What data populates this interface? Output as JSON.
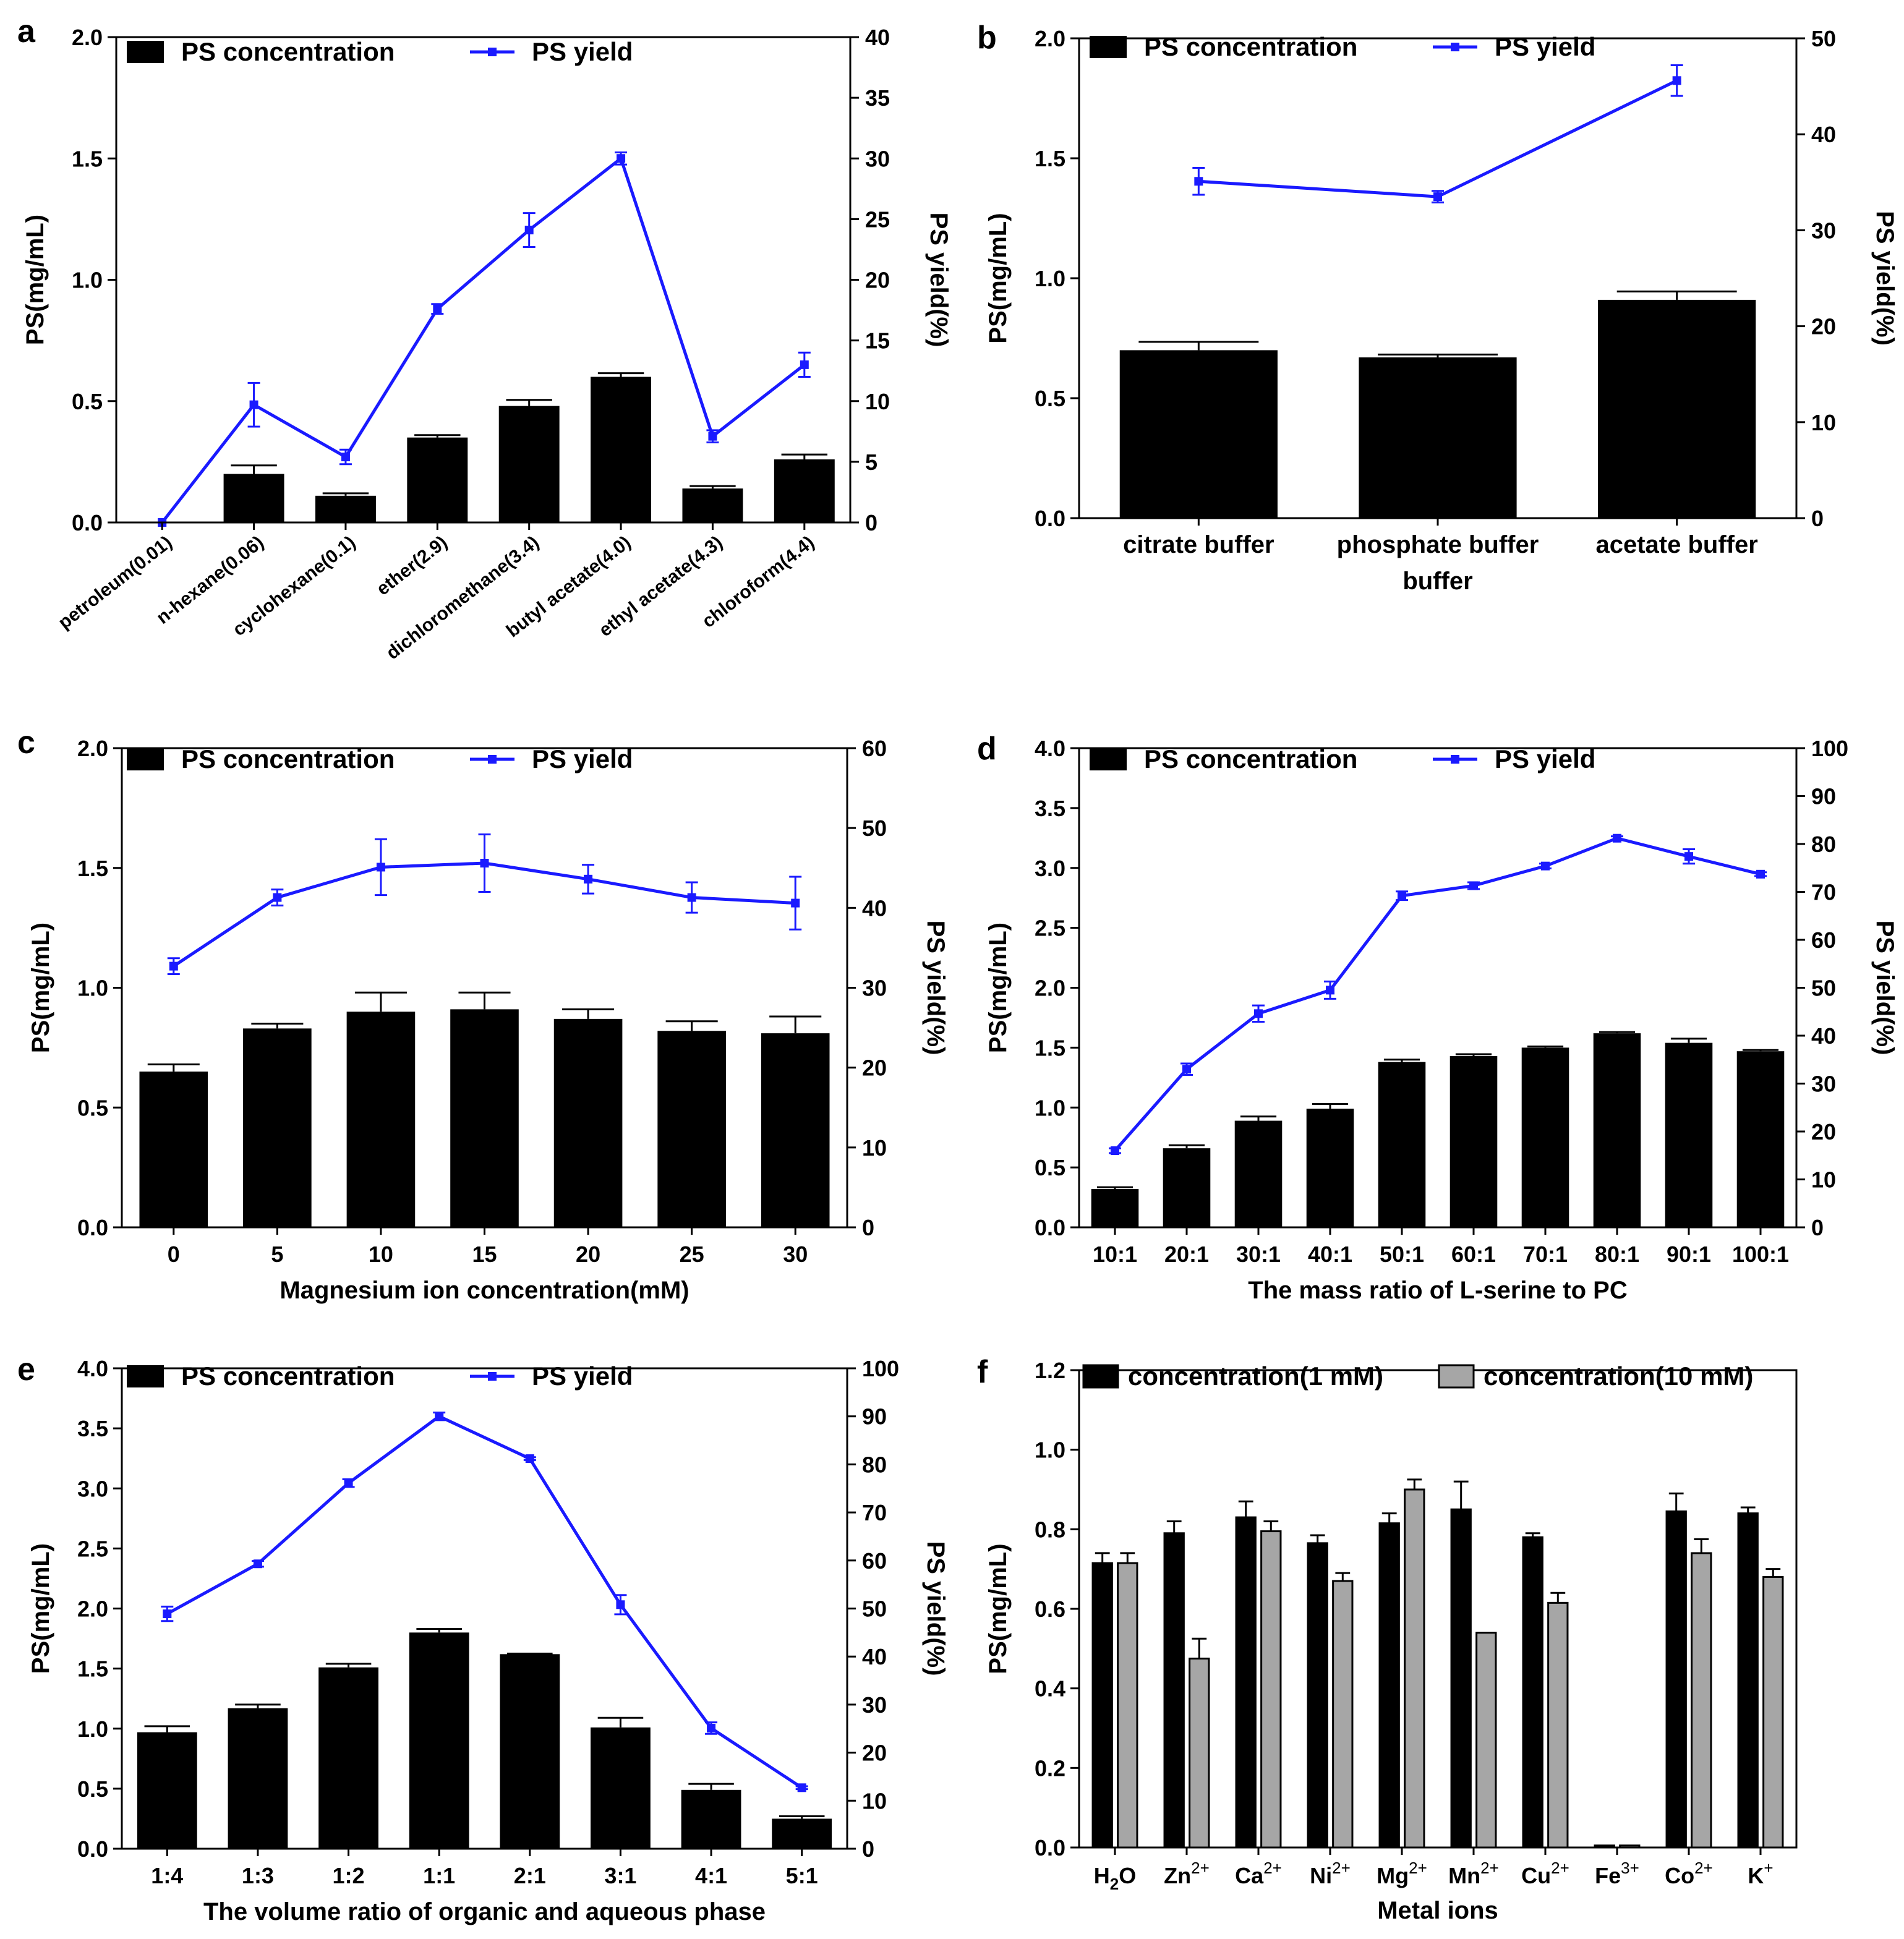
{
  "chart_data": [
    {
      "id": "a",
      "panel_label": "a",
      "type": "bar+line",
      "xlabel": "",
      "ylabel": "PS(mg/mL)",
      "y2label": "PS yield(%)",
      "ylim": [
        0,
        2.0
      ],
      "y_ticks": [
        "0.0",
        "0.5",
        "1.0",
        "1.5",
        "2.0"
      ],
      "y2lim": [
        0,
        40
      ],
      "y2_ticks": [
        "0",
        "5",
        "10",
        "15",
        "20",
        "25",
        "30",
        "35",
        "40"
      ],
      "categories": [
        "petroleum(0.01)",
        "n-hexane(0.06)",
        "cyclohexane(0.1)",
        "ether(2.9)",
        "dichloromethane(3.4)",
        "butyl acetate(4.0)",
        "ethyl acetate(4.3)",
        "chloroform(4.4)"
      ],
      "rotate_labels": true,
      "legend": [
        "PS concentration",
        "PS yield"
      ],
      "bar_series": [
        {
          "name": "PS concentration",
          "color": "#000000",
          "values": [
            0,
            0.2,
            0.11,
            0.35,
            0.48,
            0.6,
            0.14,
            0.26
          ],
          "errors": [
            0,
            0.035,
            0.01,
            0.01,
            0.025,
            0.015,
            0.01,
            0.02
          ]
        }
      ],
      "line_series": {
        "name": "PS yield",
        "color": "#1a1aff",
        "values": [
          0,
          9.7,
          5.4,
          17.6,
          24.1,
          30.0,
          7.1,
          13.0
        ],
        "errors": [
          0,
          1.8,
          0.6,
          0.4,
          1.4,
          0.5,
          0.5,
          1.0
        ]
      }
    },
    {
      "id": "b",
      "panel_label": "b",
      "type": "bar+line",
      "xlabel": "buffer",
      "ylabel": "PS(mg/mL)",
      "y2label": "PS yield(%)",
      "ylim": [
        0,
        2.0
      ],
      "y_ticks": [
        "0.0",
        "0.5",
        "1.0",
        "1.5",
        "2.0"
      ],
      "y2lim": [
        0,
        50
      ],
      "y2_ticks": [
        "0",
        "10",
        "20",
        "30",
        "40",
        "50"
      ],
      "categories": [
        "citrate buffer",
        "phosphate buffer",
        "acetate buffer"
      ],
      "rotate_labels": false,
      "legend": [
        "PS concentration",
        "PS yield"
      ],
      "bar_series": [
        {
          "name": "PS concentration",
          "color": "#000000",
          "values": [
            0.7,
            0.67,
            0.91
          ],
          "errors": [
            0.035,
            0.012,
            0.035
          ]
        }
      ],
      "line_series": {
        "name": "PS yield",
        "color": "#1a1aff",
        "values": [
          35.1,
          33.5,
          45.6
        ],
        "errors": [
          1.4,
          0.6,
          1.6
        ]
      }
    },
    {
      "id": "c",
      "panel_label": "c",
      "type": "bar+line",
      "xlabel": "Magnesium ion concentration(mM)",
      "ylabel": "PS(mg/mL)",
      "y2label": "PS yield(%)",
      "ylim": [
        0,
        2.0
      ],
      "y_ticks": [
        "0.0",
        "0.5",
        "1.0",
        "1.5",
        "2.0"
      ],
      "y2lim": [
        0,
        60
      ],
      "y2_ticks": [
        "0",
        "10",
        "20",
        "30",
        "40",
        "50",
        "60"
      ],
      "categories": [
        "0",
        "5",
        "10",
        "15",
        "20",
        "25",
        "30"
      ],
      "rotate_labels": false,
      "legend": [
        "PS concentration",
        "PS yield"
      ],
      "bar_series": [
        {
          "name": "PS concentration",
          "color": "#000000",
          "values": [
            0.65,
            0.83,
            0.9,
            0.91,
            0.87,
            0.82,
            0.81
          ],
          "errors": [
            0.03,
            0.02,
            0.08,
            0.07,
            0.04,
            0.04,
            0.07
          ]
        }
      ],
      "line_series": {
        "name": "PS yield",
        "color": "#1a1aff",
        "values": [
          32.7,
          41.3,
          45.1,
          45.6,
          43.6,
          41.3,
          40.6
        ],
        "errors": [
          1.0,
          1.0,
          3.5,
          3.6,
          1.8,
          1.9,
          3.3
        ]
      }
    },
    {
      "id": "d",
      "panel_label": "d",
      "type": "bar+line",
      "xlabel": "The mass ratio of L-serine to PC",
      "ylabel": "PS(mg/mL)",
      "y2label": "PS yield(%)",
      "ylim": [
        0,
        4.0
      ],
      "y_ticks": [
        "0.0",
        "0.5",
        "1.0",
        "1.5",
        "2.0",
        "2.5",
        "3.0",
        "3.5",
        "4.0"
      ],
      "y2lim": [
        0,
        100
      ],
      "y2_ticks": [
        "0",
        "10",
        "20",
        "30",
        "40",
        "50",
        "60",
        "70",
        "80",
        "90",
        "100"
      ],
      "categories": [
        "10:1",
        "20:1",
        "30:1",
        "40:1",
        "50:1",
        "60:1",
        "70:1",
        "80:1",
        "90:1",
        "100:1"
      ],
      "rotate_labels": false,
      "legend": [
        "PS concentration",
        "PS yield"
      ],
      "bar_series": [
        {
          "name": "PS concentration",
          "color": "#000000",
          "values": [
            0.32,
            0.66,
            0.89,
            0.99,
            1.38,
            1.43,
            1.5,
            1.62,
            1.54,
            1.47
          ],
          "errors": [
            0.015,
            0.025,
            0.035,
            0.04,
            0.02,
            0.015,
            0.01,
            0.01,
            0.035,
            0.01
          ]
        }
      ],
      "line_series": {
        "name": "PS yield",
        "color": "#1a1aff",
        "values": [
          16,
          33,
          44.6,
          49.5,
          69.2,
          71.3,
          75.4,
          81.2,
          77.4,
          73.7
        ],
        "errors": [
          0.5,
          1.2,
          1.7,
          1.8,
          0.9,
          0.7,
          0.5,
          0.4,
          1.5,
          0.4
        ]
      }
    },
    {
      "id": "e",
      "panel_label": "e",
      "type": "bar+line",
      "xlabel": "The volume ratio of organic and aqueous phase",
      "ylabel": "PS(mg/mL)",
      "y2label": "PS yield(%)",
      "ylim": [
        0,
        4.0
      ],
      "y_ticks": [
        "0.0",
        "0.5",
        "1.0",
        "1.5",
        "2.0",
        "2.5",
        "3.0",
        "3.5",
        "4.0"
      ],
      "y2lim": [
        0,
        100
      ],
      "y2_ticks": [
        "0",
        "10",
        "20",
        "30",
        "40",
        "50",
        "60",
        "70",
        "80",
        "90",
        "100"
      ],
      "categories": [
        "1:4",
        "1:3",
        "1:2",
        "1:1",
        "2:1",
        "3:1",
        "4:1",
        "5:1"
      ],
      "rotate_labels": false,
      "legend": [
        "PS concentration",
        "PS yield"
      ],
      "bar_series": [
        {
          "name": "PS concentration",
          "color": "#000000",
          "values": [
            0.97,
            1.17,
            1.51,
            1.8,
            1.62,
            1.01,
            0.49,
            0.25
          ],
          "errors": [
            0.05,
            0.03,
            0.03,
            0.03,
            0.005,
            0.08,
            0.05,
            0.02
          ]
        }
      ],
      "line_series": {
        "name": "PS yield",
        "color": "#1a1aff",
        "values": [
          48.9,
          59.3,
          76.1,
          90.0,
          81.2,
          50.8,
          25.1,
          12.7
        ],
        "errors": [
          1.5,
          0.6,
          0.8,
          0.8,
          0.3,
          2.0,
          1.2,
          0.3
        ]
      }
    },
    {
      "id": "f",
      "panel_label": "f",
      "type": "grouped_bar",
      "xlabel": "Metal ions",
      "ylabel": "PS(mg/mL)",
      "ylim": [
        0,
        1.2
      ],
      "y_ticks": [
        "0.0",
        "0.2",
        "0.4",
        "0.6",
        "0.8",
        "1.0",
        "1.2"
      ],
      "categories": [
        {
          "base": "H",
          "sub": "2",
          "tail": "O",
          "sup": ""
        },
        {
          "base": "Zn",
          "sub": "",
          "tail": "",
          "sup": "2+"
        },
        {
          "base": "Ca",
          "sub": "",
          "tail": "",
          "sup": "2+"
        },
        {
          "base": "Ni",
          "sub": "",
          "tail": "",
          "sup": "2+"
        },
        {
          "base": "Mg",
          "sub": "",
          "tail": "",
          "sup": "2+"
        },
        {
          "base": "Mn",
          "sub": "",
          "tail": "",
          "sup": "2+"
        },
        {
          "base": "Cu",
          "sub": "",
          "tail": "",
          "sup": "2+"
        },
        {
          "base": "Fe",
          "sub": "",
          "tail": "",
          "sup": "3+"
        },
        {
          "base": "Co",
          "sub": "",
          "tail": "",
          "sup": "2+"
        },
        {
          "base": "K",
          "sub": "",
          "tail": "",
          "sup": "+"
        }
      ],
      "legend": [
        "concentration(1 mM)",
        "concentration(10 mM)"
      ],
      "bar_series": [
        {
          "name": "concentration(1 mM)",
          "color": "#000000",
          "values": [
            0.715,
            0.79,
            0.83,
            0.765,
            0.815,
            0.85,
            0.78,
            0.005,
            0.845,
            0.84
          ],
          "errors": [
            0.025,
            0.03,
            0.04,
            0.02,
            0.025,
            0.07,
            0.01,
            0.0,
            0.045,
            0.015
          ]
        },
        {
          "name": "concentration(10 mM)",
          "color": "#a6a6a6",
          "values": [
            0.715,
            0.475,
            0.795,
            0.67,
            0.9,
            0.54,
            0.615,
            0.005,
            0.74,
            0.68
          ],
          "errors": [
            0.025,
            0.05,
            0.025,
            0.02,
            0.025,
            0.0,
            0.025,
            0.0,
            0.035,
            0.02
          ]
        }
      ]
    }
  ]
}
